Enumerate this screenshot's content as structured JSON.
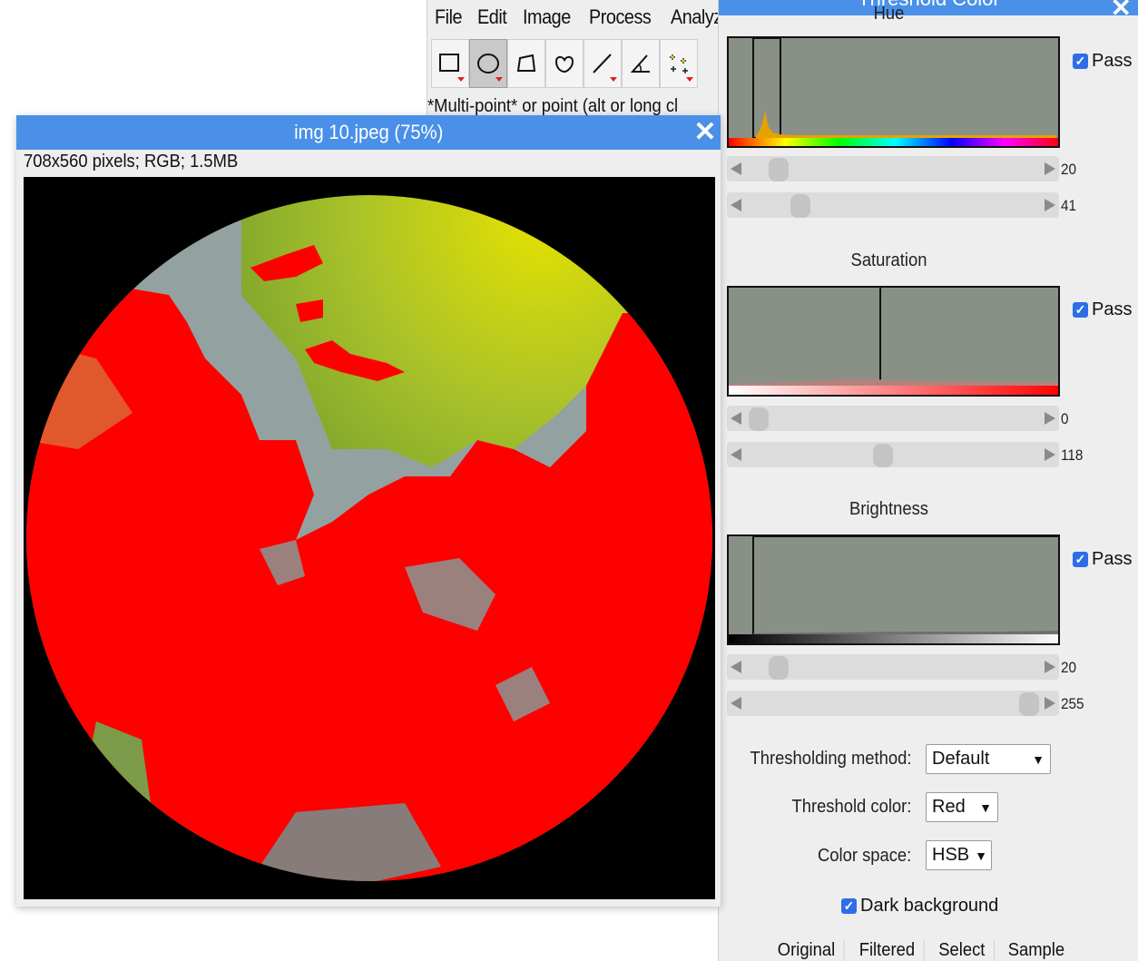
{
  "menubar": {
    "items": [
      "File",
      "Edit",
      "Image",
      "Process",
      "Analyze"
    ]
  },
  "toolbar": {
    "tools": [
      {
        "icon": "rectangle-select-icon",
        "selected": false
      },
      {
        "icon": "oval-select-icon",
        "selected": true
      },
      {
        "icon": "polygon-select-icon",
        "selected": false
      },
      {
        "icon": "freehand-select-icon",
        "selected": false
      },
      {
        "icon": "line-tool-icon",
        "selected": false
      },
      {
        "icon": "angle-tool-icon",
        "selected": false
      },
      {
        "icon": "multi-point-tool-icon",
        "selected": false
      }
    ],
    "status": "*Multi-point* or point (alt or long cl"
  },
  "image_window": {
    "title": "img 10.jpeg (75%)",
    "info": "708x560 pixels; RGB; 1.5MB",
    "close": "✕"
  },
  "threshold": {
    "title": "Threshold Color",
    "close": "✕",
    "hue": {
      "label": "Hue",
      "pass_label": "Pass",
      "pass_checked": true,
      "min": 20,
      "max": 41
    },
    "saturation": {
      "label": "Saturation",
      "pass_label": "Pass",
      "pass_checked": true,
      "min": 0,
      "max": 118
    },
    "brightness": {
      "label": "Brightness",
      "pass_label": "Pass",
      "pass_checked": true,
      "min": 20,
      "max": 255
    },
    "sliders_display": [
      "20",
      "41",
      "0",
      "118",
      "20",
      "255"
    ],
    "method_label": "Thresholding method:",
    "method_value": "Default",
    "color_label": "Threshold color:",
    "color_value": "Red",
    "space_label": "Color space:",
    "space_value": "HSB",
    "dark_bg_label": "Dark background",
    "dark_bg_checked": true,
    "buttons": [
      "Original",
      "Filtered",
      "Select",
      "Sample"
    ]
  },
  "colors": {
    "titlebar": "#4a90e8",
    "threshold_red": "#ff0000",
    "histogram_bg": "#899187",
    "panel_bg": "#eeeeee"
  }
}
